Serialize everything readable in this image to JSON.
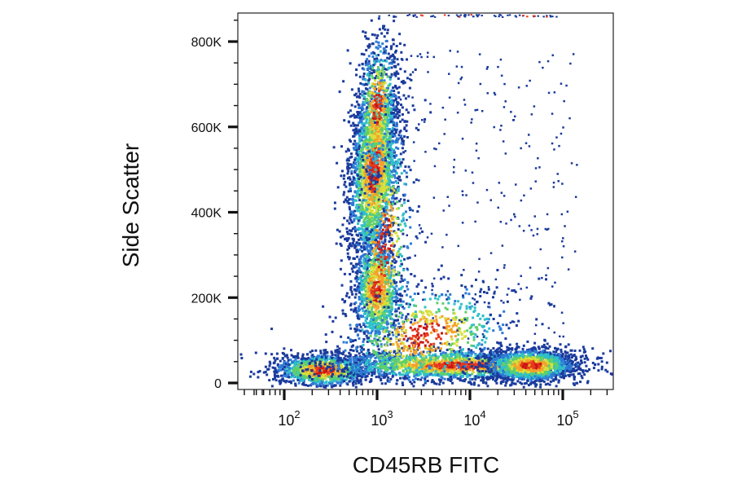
{
  "chart_data": {
    "type": "scatter",
    "subtype": "flow-cytometry-density-dot-plot",
    "title": "",
    "xlabel": "CD45RB FITC",
    "ylabel": "Side Scatter",
    "x_scale": "biexponential (log above ~100)",
    "xlim": [
      -60,
      200000
    ],
    "ylim": [
      0,
      860000
    ],
    "x_ticks": [
      {
        "value": 100,
        "base": "10",
        "exp": "2"
      },
      {
        "value": 1000,
        "base": "10",
        "exp": "3"
      },
      {
        "value": 10000,
        "base": "10",
        "exp": "4"
      },
      {
        "value": 100000,
        "base": "10",
        "exp": "5"
      }
    ],
    "y_ticks": [
      {
        "value": 0,
        "label": "0"
      },
      {
        "value": 200000,
        "label": "200K"
      },
      {
        "value": 400000,
        "label": "400K"
      },
      {
        "value": 600000,
        "label": "600K"
      },
      {
        "value": 800000,
        "label": "800K"
      }
    ],
    "grid": false,
    "legend": "none",
    "colormap": [
      "#1a3a9c",
      "#2e7bd6",
      "#2fc0c9",
      "#5fcf6a",
      "#d9df3a",
      "#f4a12a",
      "#e53a1c",
      "#c81414"
    ],
    "clusters": [
      {
        "x_center": 800,
        "y_center": 520000,
        "density": "high"
      },
      {
        "x_center": 900,
        "y_center": 200000,
        "density": "medium"
      },
      {
        "x_center": 250,
        "y_center": 40000,
        "density": "high"
      },
      {
        "x_center": 40000,
        "y_center": 55000,
        "density": "high"
      },
      {
        "x_center": 5000,
        "y_center": 60000,
        "density": "medium"
      }
    ]
  }
}
